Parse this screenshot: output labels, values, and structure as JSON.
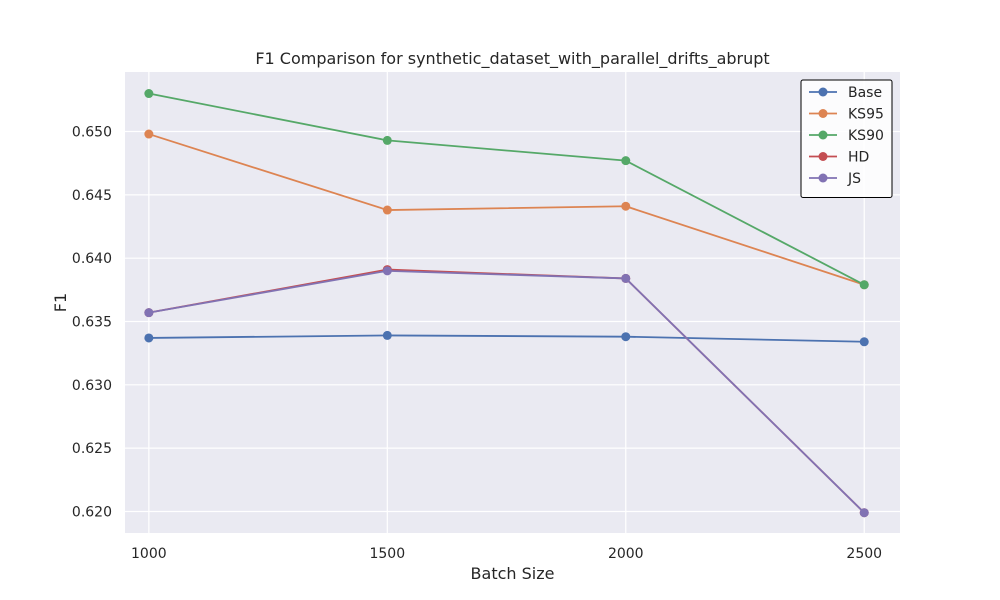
{
  "chart_data": {
    "type": "line",
    "title": "F1 Comparison for synthetic_dataset_with_parallel_drifts_abrupt",
    "xlabel": "Batch Size",
    "ylabel": "F1",
    "x": [
      1000,
      1500,
      2000,
      2500
    ],
    "x_tick_labels": [
      "1000",
      "1500",
      "2000",
      "2500"
    ],
    "y_ticks": [
      0.62,
      0.625,
      0.63,
      0.635,
      0.64,
      0.645,
      0.65
    ],
    "y_tick_labels": [
      "0.620",
      "0.625",
      "0.630",
      "0.635",
      "0.640",
      "0.645",
      "0.650"
    ],
    "xlim": [
      950,
      2575
    ],
    "ylim": [
      0.6183,
      0.6547
    ],
    "grid": true,
    "legend_position": "top-right",
    "series": [
      {
        "name": "Base",
        "color": "#4c72b0",
        "values": [
          0.6337,
          0.6339,
          0.6338,
          0.6334
        ]
      },
      {
        "name": "KS95",
        "color": "#dd8452",
        "values": [
          0.6498,
          0.6438,
          0.6441,
          0.6379
        ]
      },
      {
        "name": "KS90",
        "color": "#55a868",
        "values": [
          0.653,
          0.6493,
          0.6477,
          0.6379
        ]
      },
      {
        "name": "HD",
        "color": "#c44e52",
        "values": [
          0.6357,
          0.6391,
          0.6384,
          0.6199
        ]
      },
      {
        "name": "JS",
        "color": "#8172b3",
        "values": [
          0.6357,
          0.639,
          0.6384,
          0.6199
        ]
      }
    ]
  }
}
